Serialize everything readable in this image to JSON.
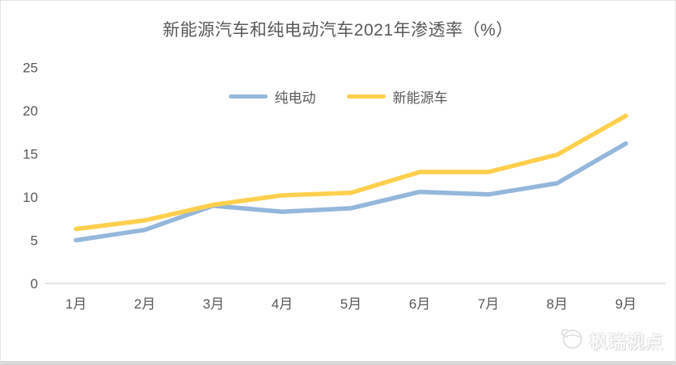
{
  "chart_data": {
    "type": "line",
    "title": "新能源汽车和纯电动汽车2021年渗透率（%）",
    "categories": [
      "1月",
      "2月",
      "3月",
      "4月",
      "5月",
      "6月",
      "7月",
      "8月",
      "9月"
    ],
    "series": [
      {
        "name": "纯电动",
        "color": "#94B7DB",
        "values": [
          5.0,
          6.2,
          9.0,
          8.3,
          8.7,
          10.6,
          10.3,
          11.6,
          16.2
        ]
      },
      {
        "name": "新能源车",
        "color": "#FFD04D",
        "values": [
          6.3,
          7.3,
          9.1,
          10.2,
          10.5,
          12.9,
          12.9,
          14.9,
          19.4
        ]
      }
    ],
    "y_ticks": [
      0,
      5,
      10,
      15,
      20,
      25
    ],
    "ylim": [
      0,
      25
    ],
    "xlabel": "",
    "ylabel": "",
    "grid": false,
    "legend_position": "top-center"
  },
  "watermark": {
    "text": "枫瑞视点",
    "icon": "bird-logo-icon"
  },
  "colors": {
    "axis_line": "#d9d9d9",
    "axis_text": "#595959",
    "card_border": "#d9d9d9"
  }
}
